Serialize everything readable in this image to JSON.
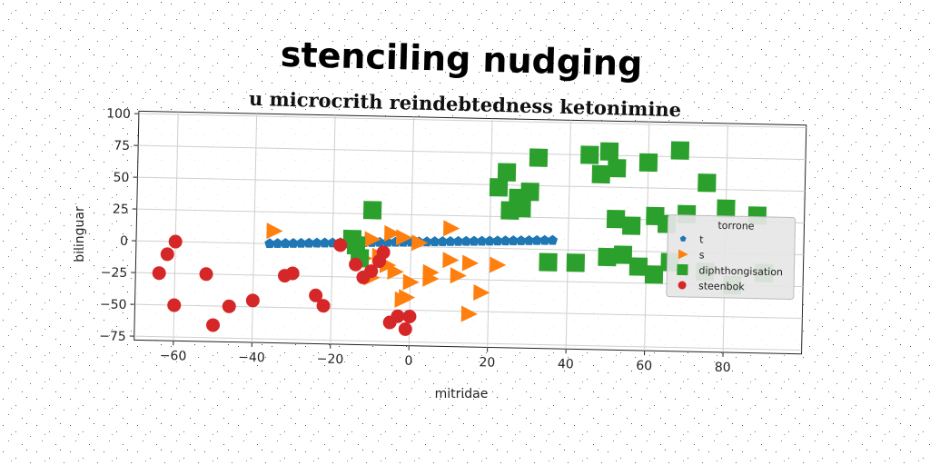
{
  "chart_data": {
    "type": "scatter",
    "title": "stenciling nudging",
    "subtitle": "u microcrith reindebtedness ketonimine",
    "xlabel": "mitridae",
    "ylabel": "bilinguar",
    "xlim": [
      -70,
      100
    ],
    "ylim": [
      -78,
      102
    ],
    "xticks": [
      -60,
      -40,
      -20,
      0,
      20,
      40,
      60,
      80
    ],
    "yticks": [
      -75,
      -50,
      -25,
      0,
      25,
      50,
      75,
      100
    ],
    "grid": true,
    "legend": {
      "title": "torrone",
      "placement": "right"
    },
    "series": [
      {
        "name": "t",
        "marker": "pentagon",
        "color": "#1f77b4",
        "x": [
          -36,
          -34,
          -32,
          -30,
          -28,
          -26,
          -24,
          -22,
          -20,
          -18,
          -16,
          -14,
          -12,
          -10,
          -8,
          -6,
          -4,
          -2,
          0,
          2,
          4,
          6,
          8,
          10,
          12,
          14,
          16,
          18,
          20,
          22,
          24,
          26,
          28,
          30,
          32,
          34,
          36
        ],
        "y": [
          0,
          0.2,
          0.4,
          0.6,
          0.8,
          1.0,
          1.2,
          1.4,
          1.6,
          1.8,
          2.0,
          2.2,
          2.4,
          2.6,
          2.8,
          3.0,
          3.2,
          3.4,
          3.6,
          3.8,
          4.0,
          4.2,
          4.4,
          4.6,
          4.8,
          5.0,
          5.2,
          5.4,
          5.6,
          5.8,
          6.0,
          6.2,
          6.4,
          6.6,
          6.8,
          7.0,
          7.2
        ]
      },
      {
        "name": "s",
        "marker": "triangle-right",
        "color": "#ff7f0e",
        "x": [
          -35,
          -10,
          -5,
          -2,
          -8,
          2,
          -12,
          -6,
          -4,
          -10,
          0,
          5,
          12,
          10,
          18,
          15,
          22,
          -1,
          15,
          10,
          -2,
          5
        ],
        "y": [
          10,
          5,
          10,
          7,
          -8,
          3,
          -10,
          -15,
          -20,
          -25,
          -28,
          -20,
          -22,
          15,
          -35,
          -12,
          -13,
          -40,
          -52,
          -10,
          -42,
          -25
        ]
      },
      {
        "name": "diphthongisation",
        "marker": "square",
        "color": "#2ca02c",
        "x": [
          -13,
          -15,
          -10,
          -14,
          22,
          25,
          28,
          30,
          24,
          27,
          32,
          45,
          48,
          52,
          50,
          60,
          68,
          75,
          80,
          88,
          52,
          56,
          62,
          65,
          70,
          42,
          50,
          54,
          58,
          62,
          66,
          75,
          82,
          90,
          35
        ],
        "y": [
          -10,
          5,
          28,
          0,
          48,
          30,
          32,
          45,
          60,
          40,
          72,
          75,
          60,
          65,
          78,
          70,
          80,
          55,
          35,
          30,
          25,
          20,
          28,
          22,
          30,
          -10,
          -5,
          -3,
          -12,
          -18,
          -8,
          -15,
          -25,
          -15,
          -10
        ]
      },
      {
        "name": "steenbok",
        "marker": "circle",
        "color": "#d62728",
        "x": [
          -60,
          -62,
          -64,
          -60,
          -52,
          -50,
          -46,
          -40,
          -32,
          -30,
          -24,
          -22,
          -18,
          -14,
          -10,
          -12,
          -8,
          -3,
          -5,
          0,
          -1,
          -7
        ],
        "y": [
          0,
          -10,
          -25,
          -50,
          -25,
          -65,
          -50,
          -45,
          -25,
          -23,
          -40,
          -48,
          0,
          -15,
          -20,
          -25,
          -12,
          -55,
          -60,
          -55,
          -65,
          -5
        ]
      }
    ]
  }
}
